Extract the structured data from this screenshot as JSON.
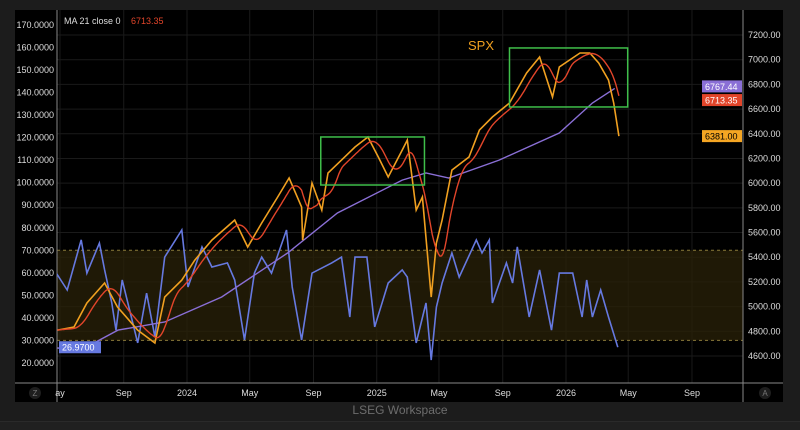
{
  "legend": {
    "label": "MA 21 close 0",
    "value": "6713.35",
    "value_color": "#e2452a"
  },
  "footer": {
    "text": "LSEG Workspace"
  },
  "buttons": {
    "left": "Z",
    "right": "A"
  },
  "chart_data": {
    "type": "line",
    "annotation": "SPX",
    "left_axis": {
      "ticks": [
        "170.0000",
        "160.0000",
        "150.0000",
        "140.0000",
        "130.0000",
        "120.0000",
        "110.0000",
        "100.0000",
        "90.0000",
        "80.0000",
        "70.0000",
        "60.0000",
        "50.0000",
        "40.0000",
        "30.0000",
        "20.0000"
      ],
      "ylim": [
        20,
        170
      ]
    },
    "right_axis": {
      "ticks": [
        "7200.00",
        "7000.00",
        "6800.00",
        "6600.00",
        "6400.00",
        "6200.00",
        "6000.00",
        "5800.00",
        "5600.00",
        "5400.00",
        "5200.00",
        "5000.00",
        "4800.00",
        "4600.00"
      ],
      "ylim": [
        4600,
        7200
      ]
    },
    "x_axis": {
      "ticks": [
        {
          "label": "ay",
          "date": "2023-05-01"
        },
        {
          "label": "Sep",
          "date": "2023-09-01"
        },
        {
          "label": "2024",
          "date": "2024-01-01"
        },
        {
          "label": "May",
          "date": "2024-05-01"
        },
        {
          "label": "Sep",
          "date": "2024-09-01"
        },
        {
          "label": "2025",
          "date": "2025-01-01"
        },
        {
          "label": "May",
          "date": "2025-05-01"
        },
        {
          "label": "Sep",
          "date": "2025-09-01"
        },
        {
          "label": "2026",
          "date": "2026-01-01"
        },
        {
          "label": "May",
          "date": "2026-05-01"
        },
        {
          "label": "Sep",
          "date": "2026-09-01"
        }
      ]
    },
    "grid": true,
    "band": {
      "low": 30,
      "high": 70,
      "axis": "left",
      "color": "#2a2208"
    },
    "series": [
      {
        "name": "SPX",
        "axis": "right",
        "color": "#f0a020",
        "last_label": "6381.00",
        "points": [
          [
            "2023-04-26",
            4810
          ],
          [
            "2023-05-28",
            4835
          ],
          [
            "2023-06-22",
            5029
          ],
          [
            "2023-07-26",
            5191
          ],
          [
            "2023-08-20",
            4997
          ],
          [
            "2023-09-28",
            4810
          ],
          [
            "2023-10-31",
            4705
          ],
          [
            "2023-11-19",
            5078
          ],
          [
            "2023-12-22",
            5215
          ],
          [
            "2024-01-16",
            5377
          ],
          [
            "2024-02-18",
            5539
          ],
          [
            "2024-04-02",
            5701
          ],
          [
            "2024-04-27",
            5483
          ],
          [
            "2024-05-24",
            5677
          ],
          [
            "2024-06-24",
            5888
          ],
          [
            "2024-07-16",
            6042
          ],
          [
            "2024-08-09",
            5807
          ],
          [
            "2024-08-11",
            5539
          ],
          [
            "2024-08-29",
            6001
          ],
          [
            "2024-09-17",
            5782
          ],
          [
            "2024-09-29",
            6082
          ],
          [
            "2024-10-25",
            6187
          ],
          [
            "2024-11-20",
            6293
          ],
          [
            "2024-12-15",
            6374
          ],
          [
            "2025-01-04",
            6212
          ],
          [
            "2025-01-23",
            6050
          ],
          [
            "2025-02-19",
            6268
          ],
          [
            "2025-03-01",
            6349
          ],
          [
            "2025-03-18",
            5782
          ],
          [
            "2025-03-30",
            5888
          ],
          [
            "2025-04-16",
            5078
          ],
          [
            "2025-04-26",
            5515
          ],
          [
            "2025-05-07",
            5701
          ],
          [
            "2025-05-26",
            6106
          ],
          [
            "2025-06-28",
            6212
          ],
          [
            "2025-07-18",
            6430
          ],
          [
            "2025-08-12",
            6536
          ],
          [
            "2025-09-14",
            6649
          ],
          [
            "2025-10-17",
            6892
          ],
          [
            "2025-11-11",
            7022
          ],
          [
            "2025-12-06",
            6698
          ],
          [
            "2025-12-19",
            6941
          ],
          [
            "2026-01-28",
            7054
          ],
          [
            "2026-02-16",
            7054
          ],
          [
            "2026-03-05",
            6973
          ],
          [
            "2026-03-24",
            6835
          ],
          [
            "2026-04-03",
            6649
          ],
          [
            "2026-04-13",
            6381
          ]
        ]
      },
      {
        "name": "MA 21 close 0",
        "axis": "right",
        "color": "#e2452a",
        "last_label": "6713.35",
        "derived_from": "SPX",
        "window_days": 30
      },
      {
        "axis": "right",
        "color": "#8a6fd6",
        "last_label": "6767.44",
        "points": [
          [
            "2023-04-26",
            4665
          ],
          [
            "2023-06-11",
            4649
          ],
          [
            "2023-08-21",
            4810
          ],
          [
            "2023-11-19",
            4875
          ],
          [
            "2024-03-08",
            5078
          ],
          [
            "2024-07-13",
            5434
          ],
          [
            "2024-10-17",
            5758
          ],
          [
            "2025-02-19",
            6025
          ],
          [
            "2025-04-06",
            6082
          ],
          [
            "2025-05-20",
            6042
          ],
          [
            "2025-08-25",
            6187
          ],
          [
            "2025-12-19",
            6406
          ],
          [
            "2026-02-21",
            6649
          ],
          [
            "2026-04-05",
            6767.44
          ]
        ]
      },
      {
        "axis": "left",
        "color": "#6679e0",
        "last_label": "26.9700",
        "points": [
          [
            "2023-04-24",
            59.9
          ],
          [
            "2023-05-15",
            52.4
          ],
          [
            "2023-06-11",
            74.6
          ],
          [
            "2023-06-22",
            59.9
          ],
          [
            "2023-07-16",
            73.2
          ],
          [
            "2023-07-26",
            61.3
          ],
          [
            "2023-08-09",
            46.6
          ],
          [
            "2023-08-17",
            34.6
          ],
          [
            "2023-08-29",
            56.8
          ],
          [
            "2023-09-28",
            28.9
          ],
          [
            "2023-10-15",
            51.0
          ],
          [
            "2023-10-31",
            31.5
          ],
          [
            "2023-11-19",
            67.0
          ],
          [
            "2023-12-22",
            79.0
          ],
          [
            "2024-01-03",
            53.7
          ],
          [
            "2024-01-30",
            71.5
          ],
          [
            "2024-02-18",
            62.6
          ],
          [
            "2024-03-19",
            64.4
          ],
          [
            "2024-04-02",
            56.8
          ],
          [
            "2024-04-21",
            30.2
          ],
          [
            "2024-05-10",
            59.9
          ],
          [
            "2024-05-24",
            67.0
          ],
          [
            "2024-06-12",
            59.9
          ],
          [
            "2024-07-11",
            79.0
          ],
          [
            "2024-07-22",
            53.7
          ],
          [
            "2024-08-09",
            30.2
          ],
          [
            "2024-08-29",
            59.9
          ],
          [
            "2024-10-06",
            64.4
          ],
          [
            "2024-10-25",
            67.0
          ],
          [
            "2024-11-10",
            40.4
          ],
          [
            "2024-11-20",
            67.0
          ],
          [
            "2024-12-13",
            67.0
          ],
          [
            "2024-12-28",
            36.0
          ],
          [
            "2025-01-23",
            55.5
          ],
          [
            "2025-02-19",
            61.3
          ],
          [
            "2025-03-01",
            58.1
          ],
          [
            "2025-03-18",
            28.9
          ],
          [
            "2025-04-06",
            46.6
          ],
          [
            "2025-04-16",
            21.3
          ],
          [
            "2025-04-26",
            44.8
          ],
          [
            "2025-05-07",
            55.5
          ],
          [
            "2025-05-26",
            68.8
          ],
          [
            "2025-06-09",
            58.1
          ],
          [
            "2025-07-12",
            74.6
          ],
          [
            "2025-07-23",
            68.8
          ],
          [
            "2025-08-06",
            74.6
          ],
          [
            "2025-08-12",
            46.6
          ],
          [
            "2025-09-08",
            64.4
          ],
          [
            "2025-09-20",
            55.5
          ],
          [
            "2025-09-29",
            71.5
          ],
          [
            "2025-10-22",
            40.4
          ],
          [
            "2025-11-11",
            61.3
          ],
          [
            "2025-12-04",
            34.6
          ],
          [
            "2025-12-19",
            59.9
          ],
          [
            "2026-01-14",
            59.9
          ],
          [
            "2026-02-01",
            40.4
          ],
          [
            "2026-02-10",
            56.8
          ],
          [
            "2026-02-21",
            40.4
          ],
          [
            "2026-03-09",
            52.4
          ],
          [
            "2026-03-24",
            40.4
          ],
          [
            "2026-04-11",
            26.97
          ]
        ]
      }
    ],
    "highlight_boxes": [
      {
        "color": "#3fbf4a",
        "from": "2024-09-15",
        "to": "2025-04-03",
        "low": 5985,
        "high": 6374
      },
      {
        "color": "#3fbf4a",
        "from": "2025-09-14",
        "to": "2026-04-30",
        "low": 6617,
        "high": 7095
      }
    ]
  }
}
